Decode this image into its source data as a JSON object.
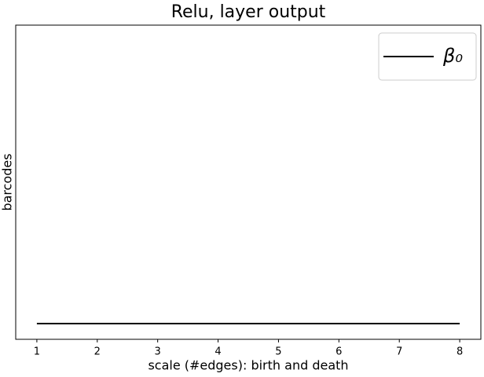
{
  "chart_data": {
    "type": "line",
    "title": "Relu, layer output",
    "xlabel": "scale (#edges): birth and death",
    "ylabel": "barcodes",
    "x": [
      1,
      8
    ],
    "series": [
      {
        "name": "β₀",
        "color": "#000000",
        "values": [
          0,
          0
        ]
      }
    ],
    "xlim": [
      0.65,
      8.35
    ],
    "xticks": [
      1,
      2,
      3,
      4,
      5,
      6,
      7,
      8
    ],
    "ylim": [
      -0.05,
      0.95
    ],
    "legend": "upper right"
  }
}
